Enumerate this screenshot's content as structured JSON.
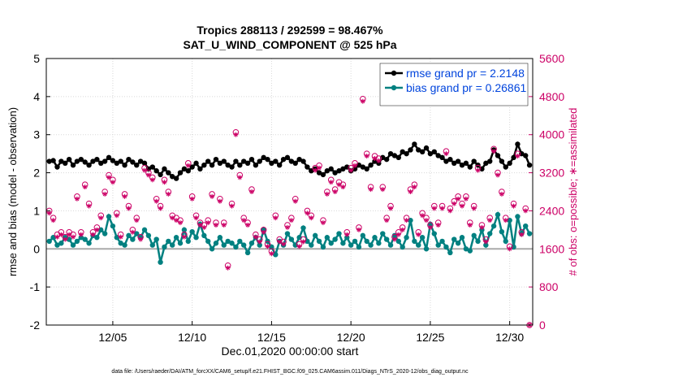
{
  "chart_data": {
    "type": "line",
    "title": "Tropics 288113 / 292599 = 98.467%",
    "subtitle": "SAT_U_WIND_COMPONENT @ 525 hPa",
    "xlabel": "Dec.01,2020 00:00:00 start",
    "ylabel": "rmse and bias (model - observation)",
    "y2label": "# of obs: o=possible; ∗=assimilated",
    "footnote": "data file: /Users/raeder/DAI/ATM_forcXX/CAM6_setup/f.e21.FHIST_BGC.f09_025.CAM6assim.011/Diags_NTrS_2020-12/obs_diag_output.nc",
    "xlim": [
      -0.19,
      30.45
    ],
    "xticks": [
      {
        "value": 4,
        "label": "12/05"
      },
      {
        "value": 9,
        "label": "12/10"
      },
      {
        "value": 14,
        "label": "12/15"
      },
      {
        "value": 19,
        "label": "12/20"
      },
      {
        "value": 24,
        "label": "12/25"
      },
      {
        "value": 29,
        "label": "12/30"
      }
    ],
    "ylim": [
      -2,
      5
    ],
    "yticks": [
      -2,
      -1,
      0,
      1,
      2,
      3,
      4,
      5
    ],
    "y2lim": [
      0,
      5600
    ],
    "y2ticks": [
      0,
      800,
      1600,
      2400,
      3200,
      4000,
      4800,
      5600
    ],
    "grid": true,
    "legend": "upper right",
    "x": [
      0,
      0.25,
      0.5,
      0.75,
      1,
      1.25,
      1.5,
      1.75,
      2,
      2.25,
      2.5,
      2.75,
      3,
      3.25,
      3.5,
      3.75,
      4,
      4.25,
      4.5,
      4.75,
      5,
      5.25,
      5.5,
      5.75,
      6,
      6.25,
      6.5,
      6.75,
      7,
      7.25,
      7.5,
      7.75,
      8,
      8.25,
      8.5,
      8.75,
      9,
      9.25,
      9.5,
      9.75,
      10,
      10.25,
      10.5,
      10.75,
      11,
      11.25,
      11.5,
      11.75,
      12,
      12.25,
      12.5,
      12.75,
      13,
      13.25,
      13.5,
      13.75,
      14,
      14.25,
      14.5,
      14.75,
      15,
      15.25,
      15.5,
      15.75,
      16,
      16.25,
      16.5,
      16.75,
      17,
      17.25,
      17.5,
      17.75,
      18,
      18.25,
      18.5,
      18.75,
      19,
      19.25,
      19.5,
      19.75,
      20,
      20.25,
      20.5,
      20.75,
      21,
      21.25,
      21.5,
      21.75,
      22,
      22.25,
      22.5,
      22.75,
      23,
      23.25,
      23.5,
      23.75,
      24,
      24.25,
      24.5,
      24.75,
      25,
      25.25,
      25.5,
      25.75,
      26,
      26.25,
      26.5,
      26.75,
      27,
      27.25,
      27.5,
      27.75,
      28,
      28.25,
      28.5,
      28.75,
      29,
      29.25,
      29.5,
      29.75,
      30,
      30.25
    ],
    "series": [
      {
        "name": "rmse grand pr = 2.2148",
        "color": "#000000",
        "marker": "dot",
        "values": [
          2.3,
          2.32,
          2.15,
          2.3,
          2.25,
          2.35,
          2.2,
          2.3,
          2.35,
          2.28,
          2.2,
          2.3,
          2.35,
          2.25,
          2.3,
          2.4,
          2.32,
          2.25,
          2.3,
          2.2,
          2.35,
          2.28,
          2.2,
          2.3,
          2.25,
          2.1,
          2.15,
          2.05,
          1.95,
          2.1,
          2.0,
          1.9,
          1.85,
          2.0,
          2.1,
          2.05,
          2.15,
          2.25,
          2.1,
          2.2,
          2.3,
          2.2,
          2.35,
          2.25,
          2.3,
          2.2,
          2.15,
          2.3,
          2.2,
          2.3,
          2.25,
          2.35,
          2.2,
          2.3,
          2.4,
          2.35,
          2.25,
          2.3,
          2.2,
          2.35,
          2.4,
          2.3,
          2.25,
          2.35,
          2.3,
          2.15,
          2.05,
          2.1,
          2.0,
          1.95,
          2.05,
          2.1,
          2.0,
          2.05,
          2.1,
          2.15,
          2.05,
          2.1,
          2.2,
          2.15,
          2.1,
          2.2,
          2.3,
          2.25,
          2.4,
          2.35,
          2.5,
          2.45,
          2.4,
          2.55,
          2.5,
          2.6,
          2.75,
          2.6,
          2.55,
          2.65,
          2.5,
          2.55,
          2.45,
          2.4,
          2.3,
          2.35,
          2.25,
          2.3,
          2.2,
          2.25,
          2.15,
          2.3,
          2.2,
          2.1,
          2.25,
          2.3,
          2.6,
          2.45,
          2.3,
          2.15,
          2.25,
          2.4,
          2.75,
          2.5,
          2.45,
          2.2
        ]
      },
      {
        "name": "bias grand pr = 0.26861",
        "color": "#008080",
        "marker": "dot",
        "values": [
          0.2,
          0.3,
          0.1,
          0.15,
          0.3,
          0.25,
          0.1,
          0.2,
          0.3,
          0.25,
          0.15,
          0.35,
          0.3,
          0.5,
          0.4,
          0.85,
          0.6,
          0.3,
          0.15,
          0.1,
          0.35,
          0.25,
          0.4,
          0.3,
          0.5,
          0.35,
          0.1,
          0.25,
          -0.35,
          0.05,
          0.2,
          0.1,
          0.3,
          0.15,
          0.5,
          0.2,
          0.45,
          0.3,
          0.65,
          0.35,
          0.2,
          0.0,
          0.15,
          0.3,
          0.1,
          0.2,
          0.15,
          0.05,
          0.2,
          0.1,
          -0.1,
          0.15,
          0.3,
          0.1,
          0.5,
          0.2,
          0.05,
          -0.15,
          0.2,
          0.1,
          0.4,
          0.25,
          0.1,
          0.3,
          0.55,
          0.2,
          0.1,
          0.35,
          0.2,
          0.05,
          0.3,
          0.15,
          0.25,
          0.4,
          0.15,
          0.3,
          0.1,
          0.2,
          0.05,
          0.35,
          0.2,
          0.1,
          0.3,
          0.15,
          0.4,
          0.25,
          0.1,
          0.35,
          0.2,
          0.05,
          0.3,
          0.75,
          0.2,
          0.1,
          0.3,
          0.0,
          0.65,
          0.4,
          0.1,
          0.2,
          0.05,
          -0.1,
          0.25,
          0.15,
          0.3,
          0.0,
          -0.05,
          0.35,
          0.2,
          0.5,
          0.1,
          0.4,
          0.6,
          0.9,
          0.45,
          0.2,
          0.75,
          0.05,
          0.85,
          0.4,
          0.6,
          0.4
        ]
      },
      {
        "color": "#cc0066",
        "axis": "y2",
        "marker": "o",
        "values": [
          2400,
          2250,
          1900,
          1950,
          1850,
          1950,
          1900,
          2700,
          1950,
          2950,
          2550,
          1950,
          2050,
          2300,
          2800,
          3150,
          3050,
          2350,
          1900,
          2750,
          2500,
          2000,
          2250,
          1850,
          3300,
          3200,
          3100,
          2650,
          2500,
          3050,
          2800,
          2300,
          2250,
          2200,
          1900,
          3400,
          2700,
          2300,
          2150,
          2100,
          2200,
          2750,
          2150,
          2650,
          2150,
          1250,
          2550,
          4050,
          3150,
          2250,
          2150,
          2850,
          1900,
          1800,
          2000,
          1700,
          1550,
          2300,
          1800,
          1750,
          2100,
          2250,
          2650,
          1700,
          1800,
          2400,
          2300,
          3300,
          3350,
          2200,
          2800,
          3050,
          2850,
          3000,
          2950,
          1950,
          3300,
          3400,
          2050,
          4750,
          3600,
          2900,
          3550,
          3500,
          2900,
          2250,
          2500,
          1850,
          1950,
          2050,
          2250,
          2850,
          2950,
          1950,
          2350,
          2250,
          2100,
          2500,
          2150,
          2500,
          3650,
          2450,
          2600,
          2700,
          2550,
          2700,
          2150,
          2500,
          3300,
          2100,
          1800,
          2250,
          3700,
          3200,
          2800,
          2250,
          1650,
          2550,
          3600,
          1950,
          2450,
          0
        ]
      },
      {
        "color": "#cc0066",
        "axis": "y2",
        "marker": "star",
        "values": [
          2350,
          2200,
          1850,
          1900,
          1800,
          1900,
          1850,
          2650,
          1900,
          2900,
          2500,
          1900,
          2000,
          2250,
          2750,
          3100,
          3000,
          2300,
          1850,
          2700,
          2450,
          1950,
          2200,
          1800,
          3250,
          3150,
          3050,
          2600,
          2450,
          3000,
          2750,
          2250,
          2200,
          2150,
          1850,
          3350,
          2650,
          2250,
          2100,
          2050,
          2150,
          2700,
          2100,
          2600,
          2100,
          1200,
          2500,
          4000,
          3100,
          2200,
          2100,
          2800,
          1850,
          1750,
          1950,
          1650,
          1500,
          2250,
          1750,
          1700,
          2050,
          2200,
          2600,
          1650,
          1750,
          2350,
          2250,
          3250,
          3300,
          2150,
          2750,
          3000,
          2800,
          2950,
          2900,
          1900,
          3250,
          3350,
          2000,
          4700,
          3550,
          2850,
          3500,
          3450,
          2850,
          2200,
          2450,
          1800,
          1900,
          2000,
          2200,
          2800,
          2900,
          1900,
          2300,
          2200,
          2050,
          2450,
          2100,
          2450,
          3600,
          2400,
          2550,
          2650,
          2500,
          2650,
          2100,
          2450,
          3250,
          2050,
          1750,
          2200,
          3650,
          3150,
          2750,
          2200,
          1600,
          2500,
          3550,
          1900,
          2400,
          0
        ]
      }
    ]
  }
}
